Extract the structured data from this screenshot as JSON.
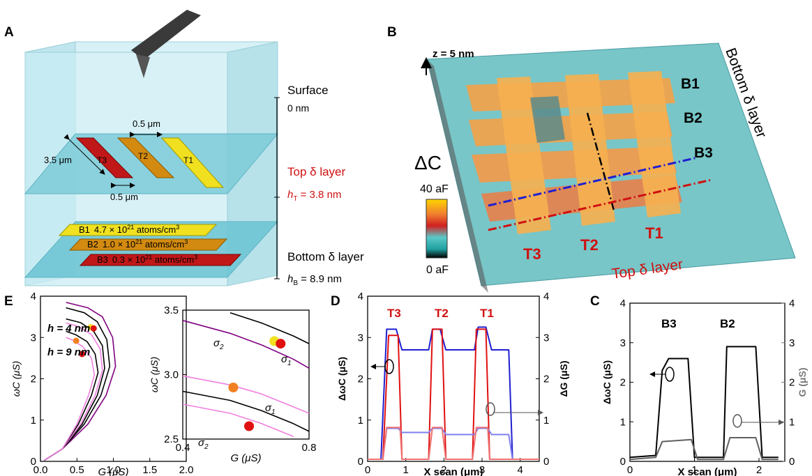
{
  "panel_labels": {
    "a": "A",
    "b": "B",
    "c": "C",
    "d": "D",
    "e": "E"
  },
  "colors": {
    "yellow": "#f0e020",
    "orange": "#d28a10",
    "red": "#c01818",
    "glass": "#c9ecf3",
    "blue": "#1f1fd0",
    "lightblue": "#7f7ff0",
    "pink": "#f080e0",
    "purple": "#800080"
  },
  "panel_a": {
    "surface": "Surface",
    "surface_depth": "0 nm",
    "top_layer": "Top δ layer",
    "h_t_sym": "h",
    "h_t_sub": "T",
    "h_t_val": " = 3.8 nm",
    "bottom_layer": "Bottom δ layer",
    "h_b_sym": "h",
    "h_b_sub": "B",
    "h_b_val": " = 8.9 nm",
    "dim_width_top": "0.5 μm",
    "dim_width_bottom": "0.5 μm",
    "dim_length": "3.5 μm",
    "strips": [
      "T3",
      "T2",
      "T1"
    ],
    "bottom_strips": [
      {
        "name": "B1",
        "conc": "4.7 × 10",
        "exp": "21",
        "unit": " atoms/cm",
        "pow": "3",
        "color": "#f0e020"
      },
      {
        "name": "B2",
        "conc": "1.0 × 10",
        "exp": "21",
        "unit": " atoms/cm",
        "pow": "3",
        "color": "#d28a10"
      },
      {
        "name": "B3",
        "conc": "0.3 × 10",
        "exp": "21",
        "unit": " atoms/cm",
        "pow": "3",
        "color": "#c01818"
      }
    ]
  },
  "panel_b": {
    "z_label": "z = 5 nm",
    "delta_c": "ΔC",
    "scale_max": "40 aF",
    "scale_min": "0 aF",
    "bottom_rows": [
      "B1",
      "B2",
      "B3"
    ],
    "top_cols": [
      "T3",
      "T2",
      "T1"
    ],
    "bottom_layer": "Bottom δ layer",
    "top_layer": "Top δ layer"
  },
  "panel_e": {
    "ylabel": "ωC (μS)",
    "xlabel": "G (μS)",
    "h4": "h = 4 nm",
    "h9": "h = 9 nm",
    "inset_ylabel": "ωC (μS)",
    "inset_xlabel": "G (μS)",
    "sigma2": "σ",
    "sigma1": "σ",
    "sub2": "2",
    "sub1": "1"
  },
  "panel_d": {
    "xlabel": "X scan (μm)",
    "ylabel_left": "ΔωC (μS)",
    "ylabel_right": "ΔG (μS)",
    "peaks": [
      "T3",
      "T2",
      "T1"
    ]
  },
  "panel_c": {
    "xlabel": "X scan (μm)",
    "ylabel_left": "ΔωC (μS)",
    "ylabel_right": "G (μS)",
    "peaks": [
      "B3",
      "B2"
    ]
  },
  "chart_data": [
    {
      "id": "E-main",
      "type": "line",
      "xlabel": "G (μS)",
      "ylabel": "ωC (μS)",
      "xlim": [
        0,
        2.0
      ],
      "ylim": [
        0,
        4
      ],
      "xticks": [
        "0.0",
        "0.5",
        "1.0",
        "1.5",
        "2.0"
      ],
      "yticks": [
        "0",
        "1",
        "2",
        "3",
        "4"
      ],
      "series": [
        {
          "color": "#800080",
          "points": [
            [
              0.05,
              0.02
            ],
            [
              0.3,
              0.3
            ],
            [
              0.65,
              0.9
            ],
            [
              0.9,
              1.6
            ],
            [
              1.03,
              2.3
            ],
            [
              0.99,
              3.0
            ],
            [
              0.85,
              3.5
            ],
            [
              0.65,
              3.72
            ],
            [
              0.35,
              3.85
            ]
          ]
        },
        {
          "color": "#000000",
          "points": [
            [
              0.05,
              0.02
            ],
            [
              0.3,
              0.3
            ],
            [
              0.6,
              0.9
            ],
            [
              0.83,
              1.6
            ],
            [
              0.95,
              2.3
            ],
            [
              0.91,
              2.95
            ],
            [
              0.78,
              3.38
            ],
            [
              0.6,
              3.6
            ],
            [
              0.35,
              3.72
            ]
          ]
        },
        {
          "color": "#000000",
          "points": [
            [
              0.05,
              0.02
            ],
            [
              0.3,
              0.3
            ],
            [
              0.57,
              0.9
            ],
            [
              0.78,
              1.6
            ],
            [
              0.88,
              2.25
            ],
            [
              0.85,
              2.8
            ],
            [
              0.73,
              3.15
            ],
            [
              0.55,
              3.36
            ],
            [
              0.35,
              3.45
            ]
          ]
        },
        {
          "color": "#f080e0",
          "points": [
            [
              0.05,
              0.02
            ],
            [
              0.3,
              0.3
            ],
            [
              0.55,
              0.9
            ],
            [
              0.75,
              1.6
            ],
            [
              0.85,
              2.2
            ],
            [
              0.82,
              2.72
            ],
            [
              0.7,
              3.07
            ],
            [
              0.52,
              3.27
            ],
            [
              0.35,
              3.35
            ]
          ]
        },
        {
          "color": "#000000",
          "points": [
            [
              0.05,
              0.02
            ],
            [
              0.3,
              0.3
            ],
            [
              0.52,
              0.9
            ],
            [
              0.7,
              1.6
            ],
            [
              0.79,
              2.15
            ],
            [
              0.75,
              2.6
            ],
            [
              0.64,
              2.9
            ],
            [
              0.48,
              3.07
            ],
            [
              0.35,
              3.15
            ]
          ]
        },
        {
          "color": "#f080e0",
          "points": [
            [
              0.05,
              0.02
            ],
            [
              0.3,
              0.3
            ],
            [
              0.5,
              0.9
            ],
            [
              0.66,
              1.6
            ],
            [
              0.74,
              2.1
            ],
            [
              0.7,
              2.5
            ],
            [
              0.58,
              2.78
            ],
            [
              0.45,
              2.93
            ],
            [
              0.35,
              3.0
            ]
          ]
        }
      ],
      "markers": [
        {
          "x": 0.69,
          "y": 3.25,
          "color": "#f0e020"
        },
        {
          "x": 0.73,
          "y": 3.22,
          "color": "#e01010"
        },
        {
          "x": 0.49,
          "y": 2.92,
          "color": "#f08020"
        },
        {
          "x": 0.57,
          "y": 2.6,
          "color": "#e01010"
        }
      ]
    },
    {
      "id": "E-inset",
      "type": "line",
      "xlabel": "G (μS)",
      "ylabel": "ωC (μS)",
      "xlim": [
        0.4,
        0.8
      ],
      "ylim": [
        2.5,
        3.5
      ],
      "xticks": [
        "0.4",
        "0.8"
      ],
      "yticks": [
        "2.5",
        "3.0",
        "3.5"
      ],
      "series": [
        {
          "color": "#800080",
          "points": [
            [
              0.4,
              3.42
            ],
            [
              0.55,
              3.32
            ],
            [
              0.65,
              3.23
            ],
            [
              0.75,
              3.12
            ],
            [
              0.8,
              3.05
            ]
          ]
        },
        {
          "color": "#000000",
          "points": [
            [
              0.55,
              3.48
            ],
            [
              0.65,
              3.4
            ],
            [
              0.75,
              3.3
            ],
            [
              0.8,
              3.24
            ]
          ]
        },
        {
          "color": "#f080e0",
          "points": [
            [
              0.4,
              2.99
            ],
            [
              0.55,
              2.92
            ],
            [
              0.65,
              2.85
            ],
            [
              0.75,
              2.75
            ],
            [
              0.8,
              2.7
            ]
          ]
        },
        {
          "color": "#000000",
          "points": [
            [
              0.4,
              2.87
            ],
            [
              0.55,
              2.8
            ],
            [
              0.65,
              2.72
            ],
            [
              0.75,
              2.62
            ],
            [
              0.8,
              2.56
            ]
          ]
        },
        {
          "color": "#f080e0",
          "points": [
            [
              0.4,
              2.77
            ],
            [
              0.55,
              2.7
            ],
            [
              0.65,
              2.62
            ],
            [
              0.75,
              2.52
            ]
          ]
        }
      ],
      "markers": [
        {
          "x": 0.69,
          "y": 3.26,
          "color": "#f0e020"
        },
        {
          "x": 0.71,
          "y": 3.24,
          "color": "#e01010"
        },
        {
          "x": 0.56,
          "y": 2.9,
          "color": "#f08020"
        },
        {
          "x": 0.61,
          "y": 2.6,
          "color": "#e01010"
        }
      ]
    },
    {
      "id": "D",
      "type": "line",
      "xlabel": "X scan (μm)",
      "ylabel": "ΔωC (μS)",
      "y2label": "ΔG (μS)",
      "xlim": [
        0,
        4.5
      ],
      "ylim": [
        0,
        4
      ],
      "xticks": [
        "0",
        "1",
        "2",
        "3",
        "4"
      ],
      "yticks": [
        "0",
        "1",
        "2",
        "3",
        "4"
      ],
      "series": [
        {
          "color": "#1f1fd0",
          "axis": "left",
          "points": [
            [
              0,
              0.05
            ],
            [
              0.35,
              0.05
            ],
            [
              0.5,
              3.2
            ],
            [
              0.75,
              3.2
            ],
            [
              0.9,
              2.7
            ],
            [
              1.6,
              2.7
            ],
            [
              1.7,
              3.2
            ],
            [
              1.9,
              3.2
            ],
            [
              2.05,
              2.7
            ],
            [
              2.8,
              2.7
            ],
            [
              2.9,
              3.25
            ],
            [
              3.1,
              3.25
            ],
            [
              3.25,
              2.7
            ],
            [
              3.7,
              2.7
            ],
            [
              3.8,
              0.05
            ],
            [
              4.5,
              0.05
            ]
          ]
        },
        {
          "color": "#e01010",
          "axis": "left",
          "points": [
            [
              0,
              0.05
            ],
            [
              0.4,
              0.05
            ],
            [
              0.55,
              3.05
            ],
            [
              0.8,
              3.05
            ],
            [
              0.9,
              0.05
            ],
            [
              1.6,
              0.05
            ],
            [
              1.7,
              3.2
            ],
            [
              1.95,
              3.2
            ],
            [
              2.05,
              0.05
            ],
            [
              2.75,
              0.05
            ],
            [
              2.85,
              3.2
            ],
            [
              3.1,
              3.2
            ],
            [
              3.2,
              0.05
            ],
            [
              4.5,
              0.05
            ]
          ]
        },
        {
          "color": "#7f7ff0",
          "axis": "right",
          "points": [
            [
              0,
              0.05
            ],
            [
              0.4,
              0.05
            ],
            [
              0.5,
              0.8
            ],
            [
              0.8,
              0.8
            ],
            [
              0.9,
              0.7
            ],
            [
              1.6,
              0.7
            ],
            [
              1.7,
              0.8
            ],
            [
              1.95,
              0.8
            ],
            [
              2.05,
              0.65
            ],
            [
              2.8,
              0.65
            ],
            [
              2.9,
              0.8
            ],
            [
              3.15,
              0.8
            ],
            [
              3.25,
              0.65
            ],
            [
              3.7,
              0.65
            ],
            [
              3.8,
              0.05
            ],
            [
              4.5,
              0.05
            ]
          ]
        },
        {
          "color": "#f07070",
          "axis": "right",
          "points": [
            [
              0,
              0.05
            ],
            [
              0.4,
              0.05
            ],
            [
              0.5,
              0.82
            ],
            [
              0.85,
              0.82
            ],
            [
              0.9,
              0.05
            ],
            [
              1.6,
              0.05
            ],
            [
              1.7,
              0.82
            ],
            [
              1.95,
              0.82
            ],
            [
              2.05,
              0.05
            ],
            [
              2.75,
              0.05
            ],
            [
              2.85,
              0.82
            ],
            [
              3.15,
              0.82
            ],
            [
              3.2,
              0.05
            ],
            [
              4.5,
              0.05
            ]
          ]
        }
      ]
    },
    {
      "id": "C",
      "type": "line",
      "xlabel": "X scan (μm)",
      "ylabel": "ΔωC (μS)",
      "y2label": "G (μS)",
      "xlim": [
        0,
        2.4
      ],
      "ylim": [
        0,
        4
      ],
      "xticks": [
        "0",
        "1",
        "2"
      ],
      "yticks": [
        "0",
        "1",
        "2",
        "3",
        "4"
      ],
      "series": [
        {
          "color": "#000000",
          "axis": "left",
          "points": [
            [
              0,
              0.1
            ],
            [
              0.4,
              0.15
            ],
            [
              0.5,
              2.3
            ],
            [
              0.6,
              2.6
            ],
            [
              0.9,
              2.6
            ],
            [
              1.0,
              0.1
            ],
            [
              1.45,
              0.1
            ],
            [
              1.5,
              2.9
            ],
            [
              1.95,
              2.9
            ],
            [
              2.05,
              0.1
            ],
            [
              2.3,
              0.1
            ]
          ]
        },
        {
          "color": "#606060",
          "axis": "right",
          "points": [
            [
              0,
              0.05
            ],
            [
              0.4,
              0.1
            ],
            [
              0.5,
              0.5
            ],
            [
              0.95,
              0.55
            ],
            [
              1.05,
              0.05
            ],
            [
              1.45,
              0.05
            ],
            [
              1.55,
              0.6
            ],
            [
              1.95,
              0.6
            ],
            [
              2.05,
              0.05
            ],
            [
              2.3,
              0.05
            ]
          ]
        }
      ]
    }
  ]
}
